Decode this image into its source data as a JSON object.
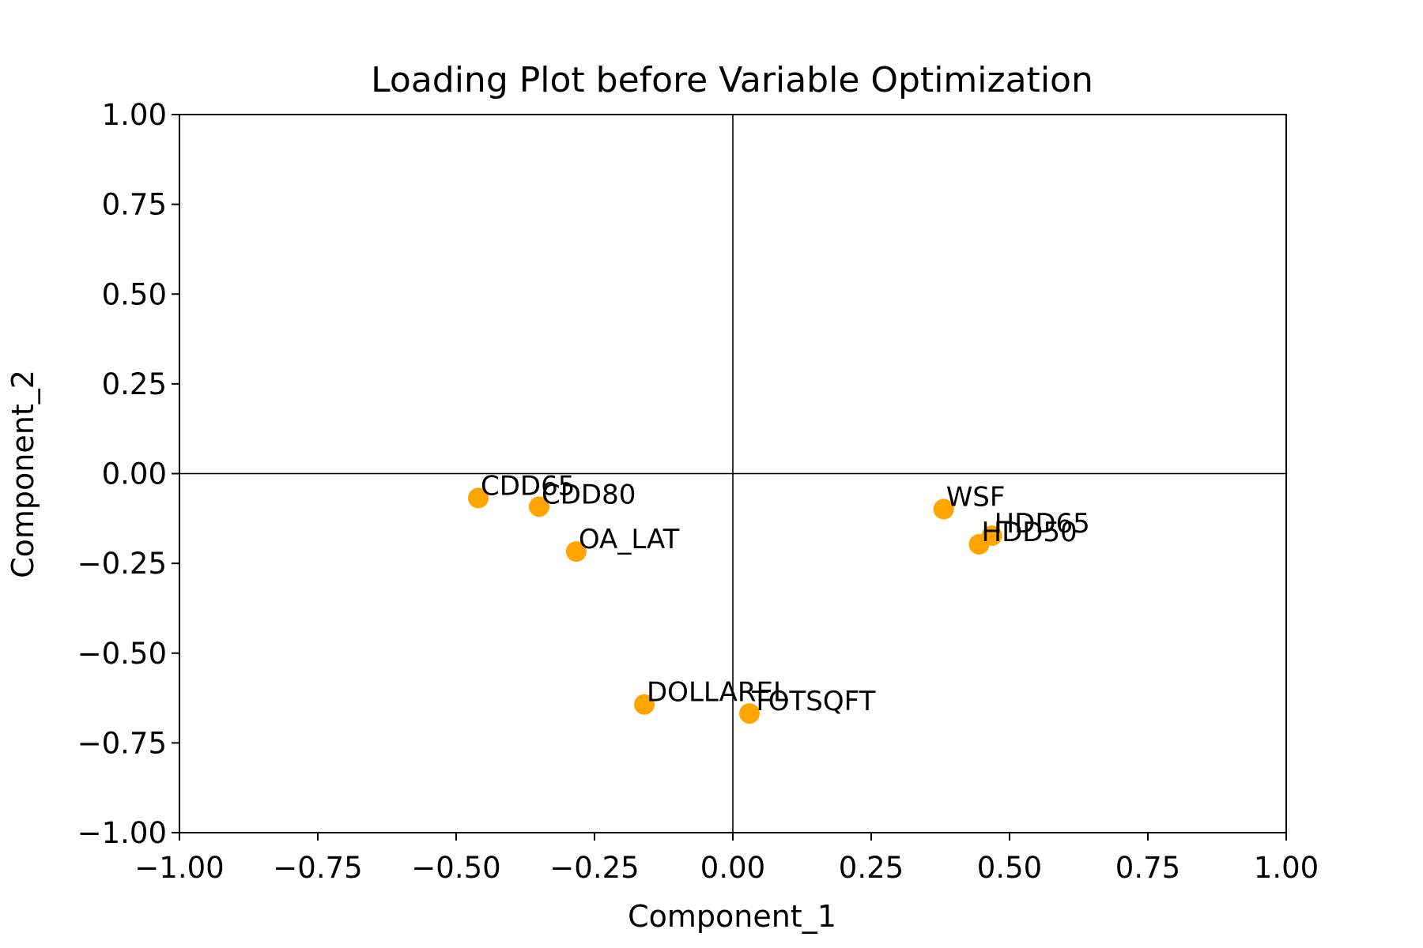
{
  "chart_data": {
    "type": "scatter",
    "title": "Loading Plot before Variable Optimization",
    "xlabel": "Component_1",
    "ylabel": "Component_2",
    "xlim": [
      -1.0,
      1.0
    ],
    "ylim": [
      -1.0,
      1.0
    ],
    "xticks": [
      -1.0,
      -0.75,
      -0.5,
      -0.25,
      0.0,
      0.25,
      0.5,
      0.75,
      1.0
    ],
    "yticks": [
      -1.0,
      -0.75,
      -0.5,
      -0.25,
      0.0,
      0.25,
      0.5,
      0.75,
      1.0
    ],
    "xtick_labels": [
      "−1.00",
      "−0.75",
      "−0.50",
      "−0.25",
      "0.00",
      "0.25",
      "0.50",
      "0.75",
      "1.00"
    ],
    "ytick_labels": [
      "−1.00",
      "−0.75",
      "−0.50",
      "−0.25",
      "0.00",
      "0.25",
      "0.50",
      "0.75",
      "1.00"
    ],
    "grid": false,
    "reference_lines": {
      "x": 0.0,
      "y": 0.0
    },
    "marker_color": "#FFA500",
    "points": [
      {
        "label": "CDD65",
        "x": -0.46,
        "y": -0.068
      },
      {
        "label": "CDD80",
        "x": -0.35,
        "y": -0.092
      },
      {
        "label": "OA_LAT",
        "x": -0.283,
        "y": -0.217
      },
      {
        "label": "DOLLAREL",
        "x": -0.16,
        "y": -0.643
      },
      {
        "label": "TOTSQFT",
        "x": 0.03,
        "y": -0.668
      },
      {
        "label": "WSF",
        "x": 0.381,
        "y": -0.099
      },
      {
        "label": "HDD65",
        "x": 0.468,
        "y": -0.173
      },
      {
        "label": "HDD50",
        "x": 0.445,
        "y": -0.197
      }
    ]
  }
}
